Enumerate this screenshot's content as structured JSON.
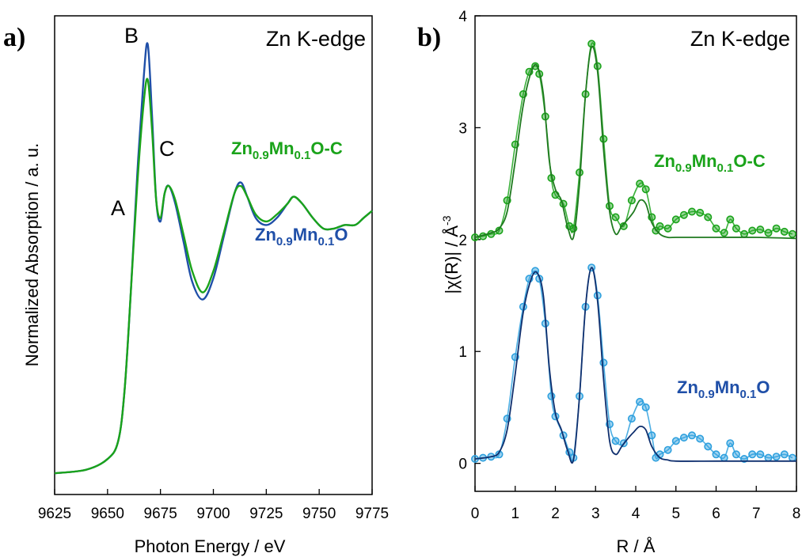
{
  "colors": {
    "green": "#1aa31a",
    "green_fit": "#1f7a1f",
    "blue": "#1f4fa8",
    "light_blue": "#2ea0de",
    "navy": "#0f2f6e",
    "axis": "#000000"
  },
  "chart_data": [
    {
      "type": "line",
      "panel_label": "a)",
      "title": "Zn K-edge",
      "xlabel": "Photon Energy / eV",
      "ylabel": "Normalized Absorption / a. u.",
      "xlim": [
        9625,
        9775
      ],
      "ylim": [
        -0.05,
        1.3
      ],
      "y_ticks_shown": false,
      "xticks": [
        9625,
        9650,
        9675,
        9700,
        9725,
        9750,
        9775
      ],
      "xtick_labels": [
        "9625",
        "9650",
        "9675",
        "9700",
        "9725",
        "9750",
        "9775"
      ],
      "annotations": [
        "A",
        "B",
        "C"
      ],
      "series": [
        {
          "name": "Zn0.9Mn0.1O",
          "label_main": [
            "Zn",
            "Mn",
            "O"
          ],
          "label_sub": [
            "0.9",
            "0.1"
          ],
          "color": "blue",
          "x": [
            9625,
            9640,
            9650,
            9655,
            9658,
            9661,
            9664,
            9667,
            9669,
            9671,
            9673,
            9675,
            9677,
            9679,
            9682,
            9686,
            9690,
            9695,
            9700,
            9705,
            9710,
            9713,
            9716,
            9720,
            9725,
            9730,
            9735,
            9738,
            9742,
            9747,
            9752,
            9757,
            9762,
            9767,
            9771,
            9775
          ],
          "y": [
            0.01,
            0.02,
            0.05,
            0.1,
            0.24,
            0.52,
            0.85,
            1.12,
            1.22,
            1.02,
            0.78,
            0.72,
            0.8,
            0.82,
            0.77,
            0.66,
            0.55,
            0.5,
            0.56,
            0.68,
            0.8,
            0.83,
            0.79,
            0.73,
            0.71,
            0.73,
            0.77,
            0.79,
            0.77,
            0.73,
            0.7,
            0.7,
            0.71,
            0.71,
            0.73,
            0.75
          ]
        },
        {
          "name": "Zn0.9Mn0.1O-C",
          "label_main": [
            "Zn",
            "Mn",
            "O-C"
          ],
          "label_sub": [
            "0.9",
            "0.1"
          ],
          "color": "green",
          "x": [
            9625,
            9640,
            9650,
            9655,
            9658,
            9661,
            9664,
            9667,
            9669,
            9671,
            9673,
            9675,
            9677,
            9679,
            9682,
            9686,
            9690,
            9695,
            9700,
            9705,
            9710,
            9713,
            9716,
            9720,
            9725,
            9730,
            9735,
            9738,
            9742,
            9747,
            9752,
            9757,
            9762,
            9767,
            9771,
            9775
          ],
          "y": [
            0.01,
            0.02,
            0.05,
            0.1,
            0.24,
            0.52,
            0.82,
            1.05,
            1.12,
            0.98,
            0.78,
            0.73,
            0.8,
            0.82,
            0.78,
            0.68,
            0.58,
            0.52,
            0.58,
            0.69,
            0.8,
            0.82,
            0.79,
            0.74,
            0.72,
            0.74,
            0.77,
            0.79,
            0.77,
            0.73,
            0.7,
            0.7,
            0.71,
            0.71,
            0.73,
            0.75
          ]
        }
      ]
    },
    {
      "type": "line",
      "panel_label": "b)",
      "title": "Zn K-edge",
      "xlabel": "R / Å",
      "ylabel": "|χ(R)| / Å",
      "ylabel_sup": "-3",
      "xlim": [
        0,
        8
      ],
      "ylim": [
        -0.25,
        4
      ],
      "xticks": [
        0,
        1,
        2,
        3,
        4,
        5,
        6,
        7,
        8
      ],
      "yticks": [
        0,
        1,
        2,
        3,
        4
      ],
      "series": [
        {
          "name": "Zn0.9Mn0.1O-C data",
          "label_main": [
            "Zn",
            "Mn",
            "O-C"
          ],
          "label_sub": [
            "0.9",
            "0.1"
          ],
          "style": "markers",
          "color": "green",
          "x": [
            0.0,
            0.2,
            0.4,
            0.6,
            0.8,
            1.0,
            1.2,
            1.35,
            1.5,
            1.6,
            1.75,
            1.9,
            2.0,
            2.2,
            2.35,
            2.45,
            2.6,
            2.75,
            2.9,
            3.05,
            3.2,
            3.35,
            3.5,
            3.7,
            3.9,
            4.1,
            4.25,
            4.4,
            4.5,
            4.6,
            4.8,
            5.0,
            5.2,
            5.4,
            5.6,
            5.8,
            6.0,
            6.2,
            6.35,
            6.5,
            6.7,
            6.9,
            7.1,
            7.3,
            7.5,
            7.7,
            7.9
          ],
          "y": [
            2.02,
            2.03,
            2.05,
            2.08,
            2.35,
            2.85,
            3.3,
            3.5,
            3.55,
            3.48,
            3.1,
            2.55,
            2.4,
            2.32,
            2.12,
            2.1,
            2.6,
            3.3,
            3.75,
            3.55,
            2.9,
            2.3,
            2.2,
            2.12,
            2.35,
            2.5,
            2.45,
            2.2,
            2.08,
            2.12,
            2.1,
            2.18,
            2.22,
            2.25,
            2.24,
            2.2,
            2.1,
            2.06,
            2.18,
            2.1,
            2.05,
            2.08,
            2.09,
            2.06,
            2.1,
            2.07,
            2.05
          ]
        },
        {
          "name": "Zn0.9Mn0.1O-C fit",
          "style": "line",
          "color": "green_fit",
          "x": [
            0.0,
            0.4,
            0.6,
            0.8,
            1.0,
            1.2,
            1.4,
            1.55,
            1.7,
            1.85,
            2.0,
            2.15,
            2.3,
            2.45,
            2.6,
            2.75,
            2.9,
            3.05,
            3.2,
            3.35,
            3.5,
            3.65,
            3.8,
            3.95,
            4.1,
            4.25,
            4.4,
            4.6,
            4.8,
            5.0,
            6.0,
            7.0,
            8.0
          ],
          "y": [
            2.02,
            2.06,
            2.1,
            2.25,
            2.7,
            3.2,
            3.5,
            3.55,
            3.3,
            2.7,
            2.45,
            2.35,
            2.12,
            2.02,
            2.5,
            3.3,
            3.72,
            3.5,
            2.8,
            2.25,
            2.05,
            2.12,
            2.18,
            2.25,
            2.35,
            2.32,
            2.15,
            2.05,
            2.02,
            2.02,
            2.02,
            2.02,
            2.01
          ]
        },
        {
          "name": "Zn0.9Mn0.1O data",
          "label_main": [
            "Zn",
            "Mn",
            "O"
          ],
          "label_sub": [
            "0.9",
            "0.1"
          ],
          "style": "markers",
          "color": "light_blue",
          "x": [
            0.0,
            0.2,
            0.4,
            0.6,
            0.8,
            1.0,
            1.2,
            1.35,
            1.5,
            1.6,
            1.75,
            1.9,
            2.0,
            2.2,
            2.35,
            2.45,
            2.6,
            2.75,
            2.9,
            3.05,
            3.2,
            3.35,
            3.5,
            3.7,
            3.9,
            4.1,
            4.25,
            4.4,
            4.5,
            4.6,
            4.8,
            5.0,
            5.2,
            5.4,
            5.6,
            5.8,
            6.0,
            6.2,
            6.35,
            6.5,
            6.7,
            6.9,
            7.1,
            7.3,
            7.5,
            7.7,
            7.9
          ],
          "y": [
            0.04,
            0.05,
            0.06,
            0.08,
            0.4,
            0.95,
            1.4,
            1.65,
            1.72,
            1.65,
            1.25,
            0.6,
            0.42,
            0.25,
            0.1,
            0.05,
            0.6,
            1.4,
            1.75,
            1.5,
            0.9,
            0.35,
            0.2,
            0.18,
            0.4,
            0.55,
            0.5,
            0.25,
            0.05,
            0.08,
            0.12,
            0.2,
            0.23,
            0.25,
            0.22,
            0.15,
            0.08,
            0.05,
            0.18,
            0.08,
            0.04,
            0.08,
            0.08,
            0.05,
            0.06,
            0.08,
            0.05
          ]
        },
        {
          "name": "Zn0.9Mn0.1O fit",
          "style": "line",
          "color": "navy",
          "x": [
            0.0,
            0.4,
            0.6,
            0.8,
            1.0,
            1.2,
            1.4,
            1.55,
            1.7,
            1.85,
            2.0,
            2.15,
            2.3,
            2.45,
            2.6,
            2.75,
            2.9,
            3.05,
            3.2,
            3.35,
            3.5,
            3.65,
            3.8,
            3.95,
            4.1,
            4.25,
            4.4,
            4.6,
            4.8,
            5.0,
            6.0,
            7.0,
            8.0
          ],
          "y": [
            0.04,
            0.06,
            0.1,
            0.3,
            0.8,
            1.35,
            1.65,
            1.7,
            1.5,
            0.85,
            0.45,
            0.3,
            0.12,
            0.03,
            0.6,
            1.4,
            1.75,
            1.45,
            0.75,
            0.2,
            0.08,
            0.15,
            0.22,
            0.28,
            0.33,
            0.3,
            0.15,
            0.05,
            0.03,
            0.02,
            0.02,
            0.02,
            0.02
          ]
        }
      ]
    }
  ]
}
